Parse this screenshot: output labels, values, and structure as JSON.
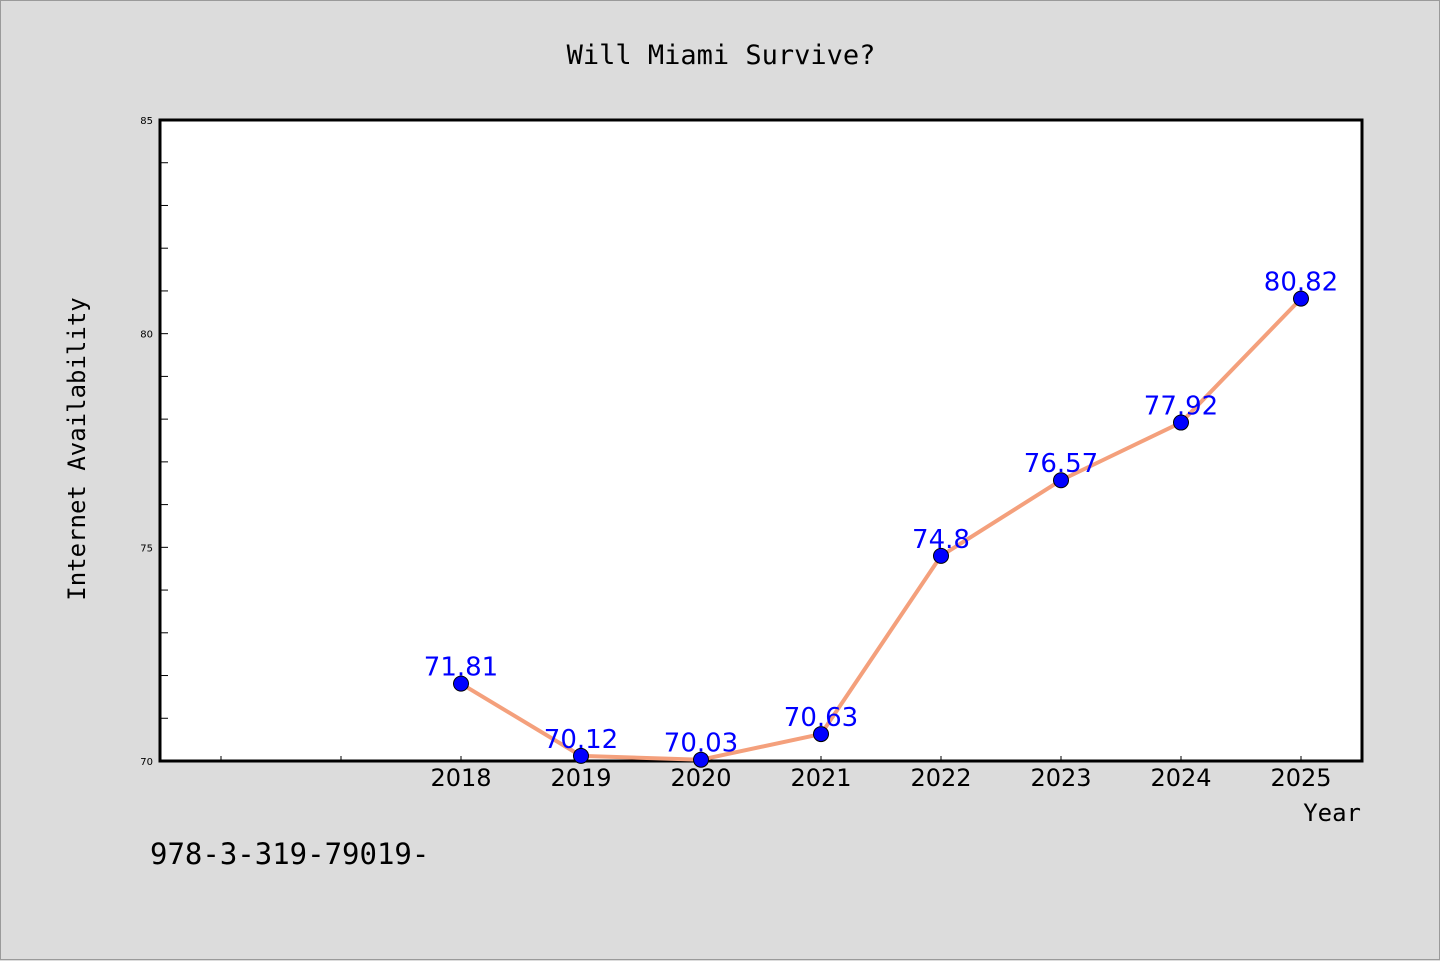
{
  "chart_data": {
    "type": "line",
    "title": "Will Miami Survive?",
    "xlabel": "Year",
    "ylabel": "Internet Availability",
    "categories": [
      "2018",
      "2019",
      "2020",
      "2021",
      "2022",
      "2023",
      "2024",
      "2025"
    ],
    "series": [
      {
        "values": [
          71.81,
          70.12,
          70.03,
          70.63,
          74.8,
          76.57,
          77.92,
          80.82
        ]
      }
    ],
    "data_labels": [
      "71.81",
      "70.12",
      "70.03",
      "70.63",
      "74.8",
      "76.57",
      "77.92",
      "80.82"
    ],
    "ylim": [
      70,
      85
    ],
    "yticks": [
      "70",
      "75",
      "80",
      "85"
    ],
    "grid": false,
    "colors": {
      "line": "#f4a07c",
      "marker": "#0000ff",
      "label": "#0000ff",
      "background": "#dcdcdc",
      "plot_background": "#ffffff"
    }
  },
  "footer_text": "978-3-319-79019-"
}
